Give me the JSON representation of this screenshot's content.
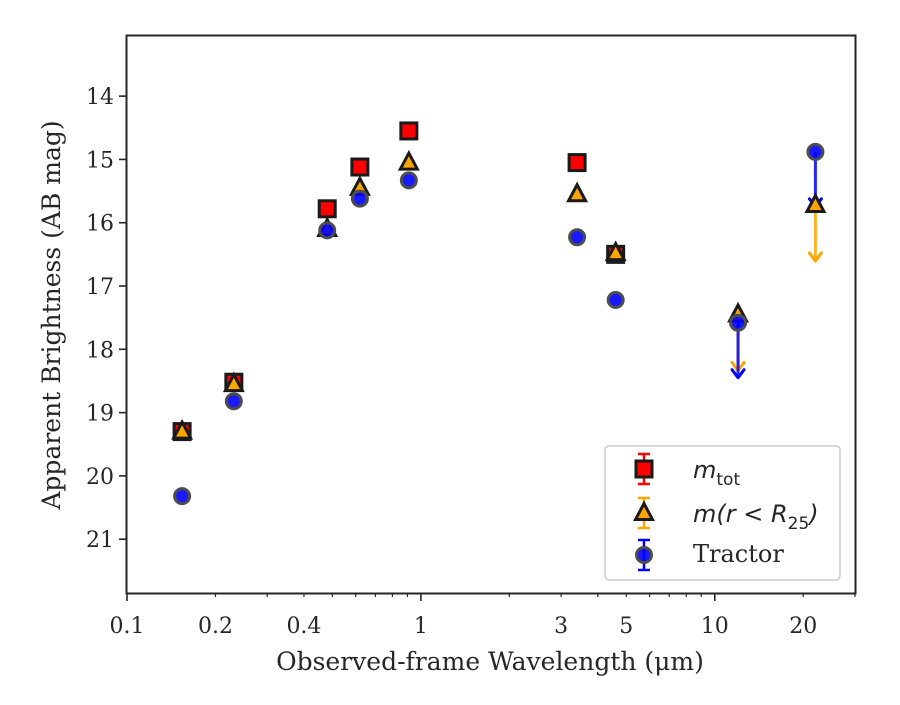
{
  "chart_data": {
    "type": "scatter",
    "xlabel": "Observed-frame Wavelength (μm)",
    "ylabel": "Apparent Brightness (AB mag)",
    "x_scale": "log",
    "y_inverted": true,
    "xlim": [
      0.1,
      30
    ],
    "ylim": [
      21.85,
      13.05
    ],
    "x_tick_labels": [
      {
        "value": 0.1,
        "label": "0.1"
      },
      {
        "value": 0.2,
        "label": "0.2"
      },
      {
        "value": 0.4,
        "label": "0.4"
      },
      {
        "value": 1,
        "label": "1"
      },
      {
        "value": 3,
        "label": "3"
      },
      {
        "value": 5,
        "label": "5"
      },
      {
        "value": 10,
        "label": "10"
      },
      {
        "value": 20,
        "label": "20"
      }
    ],
    "y_ticks": [
      14,
      15,
      16,
      17,
      18,
      19,
      20,
      21
    ],
    "grid": false,
    "legend_position": "lower-right",
    "series": [
      {
        "name_base": "m",
        "name_sub": "tot",
        "marker": "square",
        "color": "#ff0000",
        "points": [
          {
            "x": 0.154,
            "y": 19.3
          },
          {
            "x": 0.231,
            "y": 18.52
          },
          {
            "x": 0.48,
            "y": 15.78
          },
          {
            "x": 0.62,
            "y": 15.12
          },
          {
            "x": 0.91,
            "y": 14.55
          },
          {
            "x": 3.4,
            "y": 15.05
          },
          {
            "x": 4.6,
            "y": 16.5
          }
        ]
      },
      {
        "name": "m(r < R25)",
        "name_prefix": "m(r < R",
        "name_sub": "25",
        "name_suffix": ")",
        "marker": "triangle",
        "color": "#ffa500",
        "points": [
          {
            "x": 0.154,
            "y": 19.3
          },
          {
            "x": 0.231,
            "y": 18.55
          },
          {
            "x": 0.48,
            "y": 16.1
          },
          {
            "x": 0.62,
            "y": 15.45
          },
          {
            "x": 0.91,
            "y": 15.05
          },
          {
            "x": 3.4,
            "y": 15.55
          },
          {
            "x": 4.6,
            "y": 16.48
          },
          {
            "x": 12,
            "y": 17.45,
            "upper_limit": true
          },
          {
            "x": 22,
            "y": 15.72,
            "upper_limit": true
          }
        ]
      },
      {
        "name": "Tractor",
        "marker": "circle",
        "color": "#0000ff",
        "points": [
          {
            "x": 0.154,
            "y": 20.32
          },
          {
            "x": 0.231,
            "y": 18.82
          },
          {
            "x": 0.48,
            "y": 16.12
          },
          {
            "x": 0.62,
            "y": 15.62
          },
          {
            "x": 0.91,
            "y": 15.33
          },
          {
            "x": 3.4,
            "y": 16.23
          },
          {
            "x": 4.6,
            "y": 17.22
          },
          {
            "x": 12,
            "y": 17.58,
            "upper_limit": true
          },
          {
            "x": 22,
            "y": 14.88,
            "upper_limit": true
          }
        ]
      }
    ]
  }
}
